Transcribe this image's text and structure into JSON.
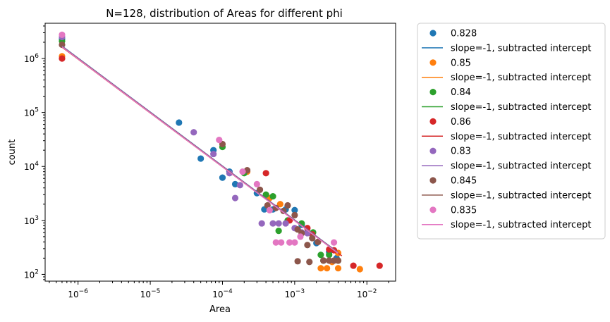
{
  "chart_data": {
    "type": "scatter",
    "title": "N=128, distribution of Areas for different phi",
    "xlabel": "Area",
    "ylabel": "count",
    "xscale": "log",
    "yscale": "log",
    "xlim": [
      3.5e-07,
      0.025
    ],
    "ylim": [
      75,
      4500000
    ],
    "x_ticks": [
      {
        "value": 1e-06,
        "label": "10",
        "exp": "−6"
      },
      {
        "value": 1e-05,
        "label": "10",
        "exp": "−5"
      },
      {
        "value": 0.0001,
        "label": "10",
        "exp": "−4"
      },
      {
        "value": 0.001,
        "label": "10",
        "exp": "−3"
      },
      {
        "value": 0.01,
        "label": "10",
        "exp": "−2"
      }
    ],
    "y_ticks": [
      {
        "value": 100,
        "label": "10",
        "exp": "2"
      },
      {
        "value": 1000,
        "label": "10",
        "exp": "3"
      },
      {
        "value": 10000,
        "label": "10",
        "exp": "4"
      },
      {
        "value": 100000,
        "label": "10",
        "exp": "5"
      },
      {
        "value": 1000000,
        "label": "10",
        "exp": "6"
      }
    ],
    "legend_position": "outside-right",
    "fit_label": "slope=-1, subtracted intercept",
    "series": [
      {
        "name": "0.828",
        "color": "#1f77b4",
        "fit": [
          [
            6e-07,
            1700000
          ],
          [
            0.004,
            255
          ]
        ],
        "points": [
          [
            6e-07,
            2300000
          ],
          [
            2.5e-05,
            65000
          ],
          [
            5e-05,
            14000
          ],
          [
            7.5e-05,
            20000
          ],
          [
            0.0001,
            6200
          ],
          [
            0.000125,
            8000
          ],
          [
            0.00015,
            4700
          ],
          [
            0.0003,
            3200
          ],
          [
            0.00038,
            1600
          ],
          [
            0.0005,
            1600
          ],
          [
            0.00075,
            1600
          ],
          [
            0.001,
            1550
          ],
          [
            0.00125,
            830
          ],
          [
            0.0015,
            600
          ],
          [
            0.002,
            380
          ],
          [
            0.003,
            260
          ],
          [
            0.0038,
            200
          ]
        ]
      },
      {
        "name": "0.85",
        "color": "#ff7f0e",
        "fit": [
          [
            6e-07,
            1650000
          ],
          [
            0.004,
            250
          ]
        ],
        "points": [
          [
            6e-07,
            1100000
          ],
          [
            0.00022,
            8000
          ],
          [
            0.00045,
            2600
          ],
          [
            0.00063,
            2000
          ],
          [
            0.0023,
            130
          ],
          [
            0.0028,
            130
          ],
          [
            0.0033,
            170
          ],
          [
            0.004,
            250
          ],
          [
            0.004,
            130
          ],
          [
            0.008,
            125
          ]
        ]
      },
      {
        "name": "0.84",
        "color": "#2ca02c",
        "fit": [
          [
            6e-07,
            1680000
          ],
          [
            0.004,
            252
          ]
        ],
        "points": [
          [
            6e-07,
            2100000
          ],
          [
            0.0001,
            23000
          ],
          [
            0.0002,
            7500
          ],
          [
            0.0004,
            3000
          ],
          [
            0.0005,
            2800
          ],
          [
            0.0006,
            640
          ],
          [
            0.0008,
            1000
          ],
          [
            0.00125,
            880
          ],
          [
            0.0018,
            600
          ],
          [
            0.0023,
            230
          ],
          [
            0.0025,
            180
          ],
          [
            0.003,
            230
          ],
          [
            0.004,
            180
          ]
        ]
      },
      {
        "name": "0.86",
        "color": "#d62728",
        "fit": [
          [
            6e-07,
            1620000
          ],
          [
            0.0045,
            220
          ]
        ],
        "points": [
          [
            6e-07,
            1000000
          ],
          [
            0.0004,
            7500
          ],
          [
            0.00085,
            1000
          ],
          [
            0.0015,
            720
          ],
          [
            0.00175,
            550
          ],
          [
            0.0021,
            400
          ],
          [
            0.003,
            290
          ],
          [
            0.0035,
            280
          ],
          [
            0.0065,
            145
          ],
          [
            0.015,
            145
          ]
        ]
      },
      {
        "name": "0.83",
        "color": "#9467bd",
        "fit": [
          [
            6e-07,
            1690000
          ],
          [
            0.004,
            254
          ]
        ],
        "points": [
          [
            6e-07,
            2500000
          ],
          [
            4e-05,
            43000
          ],
          [
            7.5e-05,
            17000
          ],
          [
            0.000125,
            7500
          ],
          [
            0.00015,
            2600
          ],
          [
            0.000175,
            4500
          ],
          [
            0.00035,
            880
          ],
          [
            0.0005,
            880
          ],
          [
            0.0006,
            880
          ],
          [
            0.00075,
            880
          ],
          [
            0.001,
            720
          ],
          [
            0.00125,
            600
          ],
          [
            0.0015,
            580
          ]
        ]
      },
      {
        "name": "0.845",
        "color": "#8c564b",
        "fit": [
          [
            6e-07,
            1660000
          ],
          [
            0.004,
            250
          ]
        ],
        "points": [
          [
            6e-07,
            1800000
          ],
          [
            0.0001,
            26000
          ],
          [
            0.00022,
            8500
          ],
          [
            0.00033,
            3700
          ],
          [
            0.00042,
            1900
          ],
          [
            0.00055,
            1700
          ],
          [
            0.0007,
            1500
          ],
          [
            0.0008,
            1900
          ],
          [
            0.001,
            1250
          ],
          [
            0.0011,
            680
          ],
          [
            0.00125,
            580
          ],
          [
            0.0015,
            350
          ],
          [
            0.00175,
            470
          ],
          [
            0.0021,
            400
          ],
          [
            0.0025,
            180
          ],
          [
            0.003,
            180
          ],
          [
            0.0035,
            180
          ],
          [
            0.004,
            180
          ],
          [
            0.0011,
            175
          ],
          [
            0.0016,
            170
          ]
        ]
      },
      {
        "name": "0.835",
        "color": "#e377c2",
        "fit": [
          [
            6e-07,
            1640000
          ],
          [
            0.004,
            246
          ]
        ],
        "points": [
          [
            6e-07,
            2750000
          ],
          [
            9e-05,
            31000
          ],
          [
            0.00019,
            8000
          ],
          [
            0.0003,
            4700
          ],
          [
            0.00045,
            1550
          ],
          [
            0.00055,
            390
          ],
          [
            0.00065,
            390
          ],
          [
            0.00085,
            390
          ],
          [
            0.001,
            390
          ],
          [
            0.0012,
            500
          ],
          [
            0.0035,
            390
          ]
        ]
      }
    ]
  }
}
